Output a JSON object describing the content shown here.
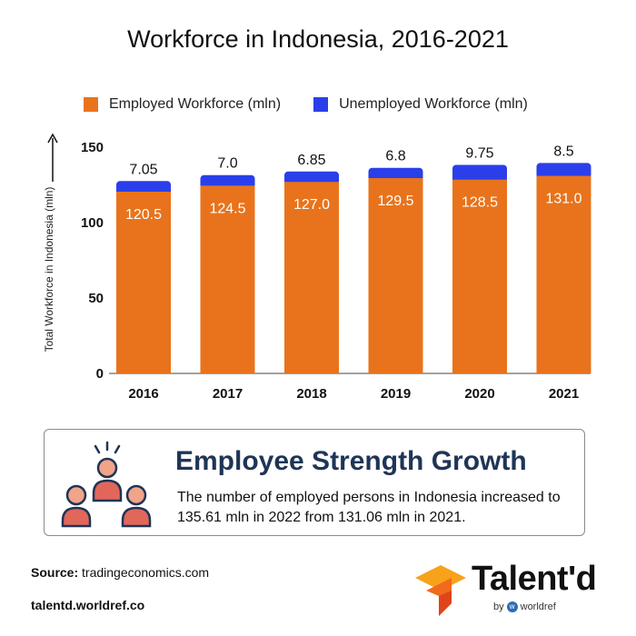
{
  "title": "Workforce in Indonesia, 2016-2021",
  "colors": {
    "employed": "#E8731C",
    "unemployed": "#2A3FEA",
    "card_heading": "#1F3556",
    "brand_orange": "#F26A1B"
  },
  "chart_data": {
    "type": "bar",
    "stacked": true,
    "categories": [
      "2016",
      "2017",
      "2018",
      "2019",
      "2020",
      "2021"
    ],
    "series": [
      {
        "name": "Employed Workforce (mln)",
        "values": [
          120.5,
          124.5,
          127.0,
          129.5,
          128.5,
          131.0
        ],
        "labels": [
          "120.5",
          "124.5",
          "127.0",
          "129.5",
          "128.5",
          "131.0"
        ]
      },
      {
        "name": "Unemployed Workforce (mln)",
        "values": [
          7.05,
          7.0,
          6.85,
          6.8,
          9.75,
          8.5
        ],
        "labels": [
          "7.05",
          "7.0",
          "6.85",
          "6.8",
          "9.75",
          "8.5"
        ]
      }
    ],
    "ylabel": "Total Workforce in Indonesia (mln)",
    "ylim": [
      0,
      150
    ],
    "yticks": [
      0,
      50,
      100,
      150
    ],
    "legend_position": "top",
    "grid": false
  },
  "card": {
    "heading": "Employee Strength Growth",
    "text": "The number of employed persons in Indonesia increased to 135.61 mln in 2022 from 131.06 mln in 2021.",
    "icon": "people-group-icon"
  },
  "footer": {
    "source_label": "Source:",
    "source_value": "tradingeconomics.com",
    "site": "talentd.worldref.co"
  },
  "brand": {
    "name": "Talent'd",
    "by": "by",
    "partner": "worldref",
    "partner_initial": "w",
    "icon": "talentd-logo-icon"
  }
}
